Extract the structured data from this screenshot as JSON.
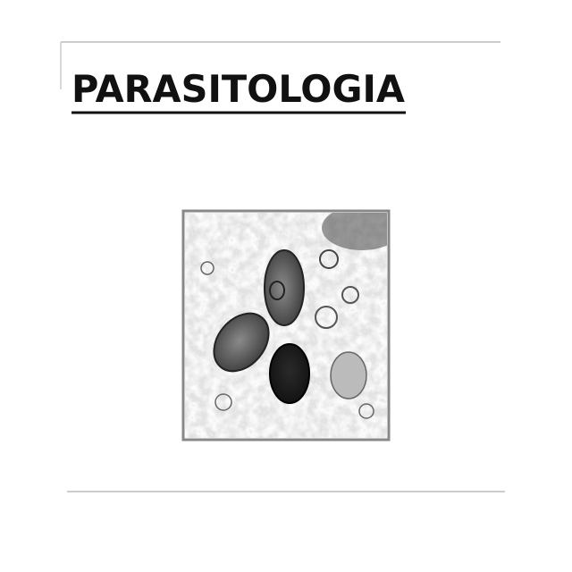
{
  "header": {
    "title": "PARASITOLOGIA"
  }
}
